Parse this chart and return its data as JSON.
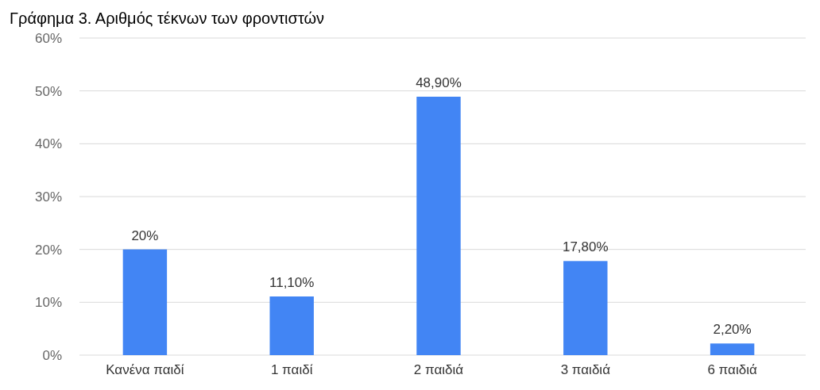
{
  "chart_data": {
    "type": "bar",
    "title": "Γράφημα 3. Αριθμός τέκνων των φροντιστών",
    "categories": [
      "Κανένα παιδί",
      "1 παιδί",
      "2 παιδιά",
      "3 παιδιά",
      "6 παιδιά"
    ],
    "values": [
      20,
      11.1,
      48.9,
      17.8,
      2.2
    ],
    "value_labels": [
      "20%",
      "11,10%",
      "48,90%",
      "17,80%",
      "2,20%"
    ],
    "color": "#4285f4",
    "ylim": [
      0,
      60
    ],
    "yticks": [
      {
        "value": 0,
        "label": "0%"
      },
      {
        "value": 10,
        "label": "10%"
      },
      {
        "value": 20,
        "label": "20%"
      },
      {
        "value": 30,
        "label": "30%"
      },
      {
        "value": 40,
        "label": "40%"
      },
      {
        "value": 50,
        "label": "50%"
      },
      {
        "value": 60,
        "label": "60%"
      }
    ],
    "grid": "y"
  }
}
